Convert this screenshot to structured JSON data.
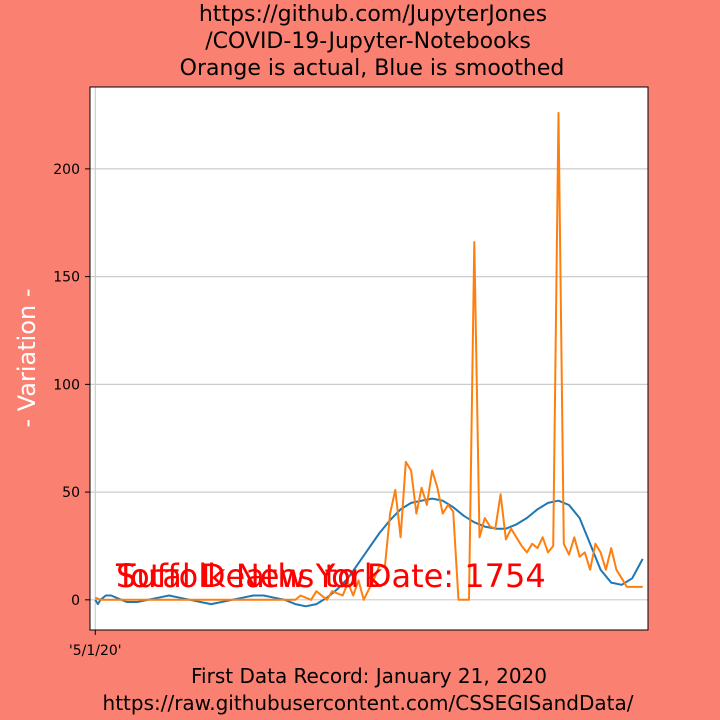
{
  "figure": {
    "background": "#FA8072",
    "plot_background": "#ffffff",
    "title_lines": [
      "https://github.com/JupyterJones",
      "/COVID-19-Jupyter-Notebooks",
      "Orange is actual, Blue is smoothed"
    ],
    "footer_lines": [
      "First Data Record: January 21, 2020",
      "https://raw.githubusercontent.com/CSSEGISandData/"
    ],
    "overlay_texts": [
      "Suffolk New York",
      "Total Deaths to Date: 1754"
    ],
    "overlay_color": "#ff0000"
  },
  "chart_data": {
    "type": "line",
    "title": "https://github.com/JupyterJones /COVID-19-Jupyter-Notebooks Orange is actual, Blue is smoothed",
    "xlabel": "First Data Record: January 21, 2020 https://raw.githubusercontent.com/CSSEGISandData/",
    "ylabel": "- Variation -",
    "ylim": [
      -14,
      238
    ],
    "xlim": [
      -1,
      105
    ],
    "yticks": [
      0,
      50,
      100,
      150,
      200
    ],
    "xticks": [
      {
        "x": 0,
        "label": "'5/1/20'"
      }
    ],
    "grid": true,
    "series": [
      {
        "name": "",
        "color": "#1f77b4",
        "x": [
          0,
          0.5,
          1,
          2,
          3,
          4,
          6,
          8,
          10,
          12,
          14,
          16,
          18,
          20,
          22,
          24,
          26,
          28,
          30,
          32,
          34,
          36,
          38,
          40,
          42,
          44,
          46,
          48,
          50,
          52,
          54,
          56,
          58,
          60,
          62,
          64,
          66,
          68,
          70,
          72,
          74,
          76,
          78,
          80,
          82,
          84,
          86,
          88,
          90,
          92,
          94,
          96,
          98,
          100,
          102,
          104
        ],
        "y": [
          0,
          -2,
          0,
          2,
          2,
          1,
          -1,
          -1,
          0,
          1,
          2,
          1,
          0,
          -1,
          -2,
          -1,
          0,
          1,
          2,
          2,
          1,
          0,
          -2,
          -3,
          -2,
          1,
          5,
          10,
          17,
          24,
          31,
          37,
          42,
          45,
          46,
          47,
          46,
          43,
          39,
          36,
          34,
          33,
          33,
          35,
          38,
          42,
          45,
          46,
          44,
          38,
          26,
          14,
          8,
          7,
          10,
          19
        ]
      },
      {
        "name": "",
        "color": "#ff7f0e",
        "x": [
          0,
          1,
          2,
          3,
          4,
          5,
          6,
          8,
          10,
          12,
          14,
          16,
          18,
          20,
          22,
          24,
          26,
          28,
          30,
          32,
          34,
          36,
          38,
          39,
          40,
          41,
          42,
          43,
          44,
          45,
          46,
          47,
          48,
          49,
          50,
          51,
          52,
          53,
          54,
          55,
          56,
          57,
          58,
          59,
          60,
          61,
          62,
          63,
          64,
          65,
          66,
          67,
          68,
          69,
          70,
          71,
          72,
          73,
          74,
          75,
          76,
          77,
          78,
          79,
          80,
          81,
          82,
          83,
          84,
          85,
          86,
          87,
          88,
          89,
          90,
          91,
          92,
          93,
          94,
          95,
          96,
          97,
          98,
          99,
          100,
          101,
          102,
          103,
          104
        ],
        "y": [
          1,
          0,
          0,
          0,
          0,
          0,
          0,
          0,
          0,
          0,
          0,
          0,
          0,
          0,
          0,
          0,
          0,
          0,
          0,
          0,
          0,
          0,
          0,
          2,
          1,
          0,
          4,
          2,
          0,
          4,
          3,
          2,
          8,
          2,
          9,
          0,
          5,
          10,
          16,
          15,
          40,
          51,
          29,
          64,
          60,
          40,
          52,
          44,
          60,
          52,
          40,
          44,
          41,
          0,
          0,
          0,
          166,
          29,
          38,
          34,
          33,
          49,
          28,
          33,
          29,
          25,
          22,
          26,
          24,
          29,
          22,
          25,
          226,
          26,
          21,
          29,
          20,
          22,
          14,
          26,
          22,
          14,
          24,
          14,
          10,
          6,
          6,
          6,
          6
        ]
      }
    ]
  }
}
